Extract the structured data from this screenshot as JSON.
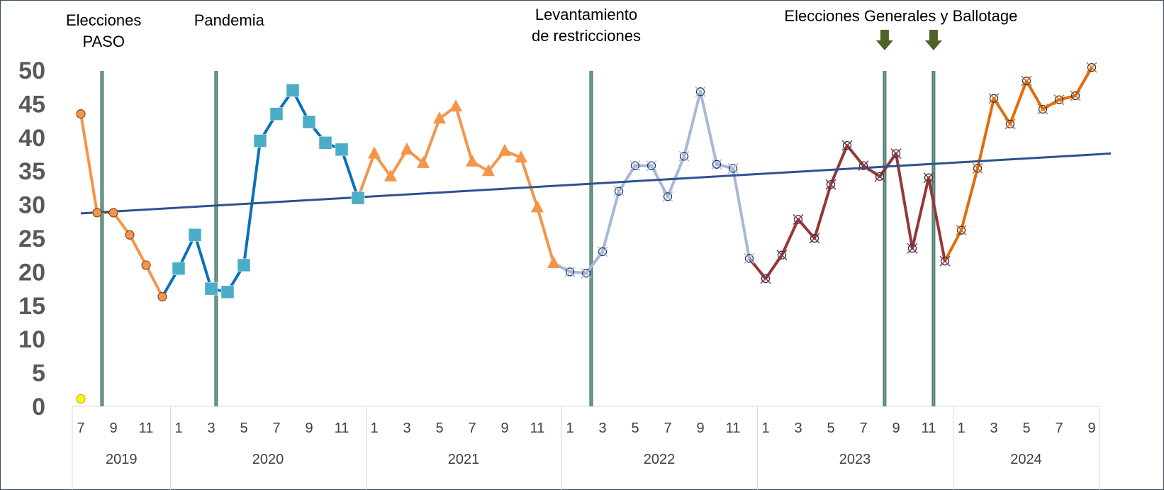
{
  "chart_data": {
    "type": "line",
    "ylim": [
      0,
      50
    ],
    "yticks": [
      "0",
      "5",
      "10",
      "15",
      "20",
      "25",
      "30",
      "35",
      "40",
      "45",
      "50"
    ],
    "years": [
      {
        "label": "2019",
        "months": [
          7,
          8,
          9,
          10,
          11,
          12
        ],
        "tick_labels": [
          "7",
          "9",
          "11"
        ]
      },
      {
        "label": "2020",
        "months": [
          1,
          2,
          3,
          4,
          5,
          6,
          7,
          8,
          9,
          10,
          11,
          12
        ],
        "tick_labels": [
          "1",
          "3",
          "5",
          "7",
          "9",
          "11"
        ]
      },
      {
        "label": "2021",
        "months": [
          1,
          2,
          3,
          4,
          5,
          6,
          7,
          8,
          9,
          10,
          11,
          12
        ],
        "tick_labels": [
          "1",
          "3",
          "5",
          "7",
          "9",
          "11"
        ]
      },
      {
        "label": "2022",
        "months": [
          1,
          2,
          3,
          4,
          5,
          6,
          7,
          8,
          9,
          10,
          11,
          12
        ],
        "tick_labels": [
          "1",
          "3",
          "5",
          "7",
          "9",
          "11"
        ]
      },
      {
        "label": "2023",
        "months": [
          1,
          2,
          3,
          4,
          5,
          6,
          7,
          8,
          9,
          10,
          11,
          12
        ],
        "tick_labels": [
          "1",
          "3",
          "5",
          "7",
          "9",
          "11"
        ]
      },
      {
        "label": "2024",
        "months": [
          1,
          2,
          3,
          4,
          5,
          6,
          7,
          8,
          9
        ],
        "tick_labels": [
          "1",
          "3",
          "5",
          "7",
          "9"
        ]
      }
    ],
    "series": [
      {
        "key": "s2019",
        "color": "#f4954a",
        "marker": "circle",
        "start_index": 0,
        "values": [
          43.5,
          28.8,
          28.8,
          25.5,
          21.0,
          16.3
        ]
      },
      {
        "key": "s2020",
        "color": "#0a70c0",
        "marker": "square",
        "marker_color": "#4badc6",
        "start_index": 6,
        "values": [
          20.5,
          25.5,
          17.5,
          17.0,
          21.0,
          39.5,
          43.5,
          47.0,
          42.3,
          39.2,
          38.2,
          31.0
        ]
      },
      {
        "key": "s2021",
        "color": "#f4954a",
        "marker": "triangle",
        "start_index": 18,
        "values": [
          37.6,
          34.2,
          38.2,
          36.2,
          42.8,
          44.6,
          36.4,
          35.0,
          38.0,
          37.0,
          29.6,
          21.3
        ]
      },
      {
        "key": "s2022",
        "color": "#a8b8d8",
        "marker": "xcircle",
        "start_index": 30,
        "values": [
          20.0,
          19.8,
          23.0,
          32.0,
          35.8,
          35.8,
          31.2,
          37.2,
          46.8,
          36.0,
          35.4,
          22.0
        ]
      },
      {
        "key": "s2023",
        "color": "#953735",
        "marker": "xcircle",
        "start_index": 42,
        "values": [
          19.0,
          22.5,
          27.8,
          25.0,
          33.0,
          38.8,
          35.8,
          34.2,
          37.6,
          23.5,
          34.0,
          21.6
        ]
      },
      {
        "key": "s2024",
        "color": "#e36c0a",
        "marker": "xcircle",
        "start_index": 54,
        "values": [
          26.2,
          35.4,
          45.8,
          42.0,
          48.4,
          44.2,
          45.6,
          46.2,
          50.4
        ]
      }
    ],
    "trend": {
      "color": "#2e5290",
      "start": 28.7,
      "end": 37.6
    },
    "special_point": {
      "index": 0,
      "value": 1.0,
      "color": "#ffff00"
    },
    "event_lines": [
      {
        "index": 1.3,
        "color": "#4f7a6e"
      },
      {
        "index": 8.3,
        "color": "#4f7a6e"
      },
      {
        "index": 31.3,
        "color": "#4f7a6e"
      },
      {
        "index": 49.3,
        "color": "#4f7a6e"
      },
      {
        "index": 52.3,
        "color": "#4f7a6e"
      }
    ],
    "annotations": [
      {
        "lines": [
          "Elecciones",
          "PASO"
        ],
        "index": 1.4
      },
      {
        "lines": [
          "Pandemia"
        ],
        "index": 9.1
      },
      {
        "lines": [
          "Levantamiento",
          "de restricciones"
        ],
        "index": 31.0
      },
      {
        "lines": [
          "Elecciones Generales y Ballotage"
        ],
        "index": 50.3
      }
    ],
    "arrows": [
      {
        "index": 49.3
      },
      {
        "index": 52.3
      }
    ],
    "arrow_color": "#4f6228"
  }
}
